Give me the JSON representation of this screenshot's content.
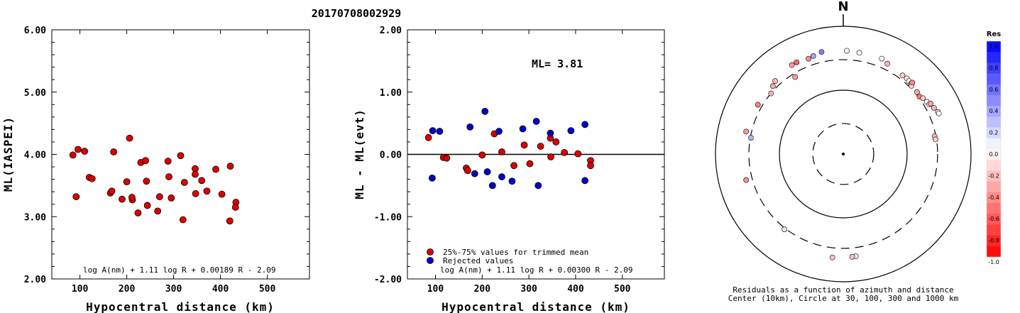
{
  "title": "20170708002929",
  "chart_data": [
    {
      "type": "scatter",
      "xlabel": "Hypocentral distance (km)",
      "ylabel": "ML(IASPEI)",
      "xlim": [
        40,
        590
      ],
      "ylim": [
        2.0,
        6.0
      ],
      "x_ticks": [
        "100",
        "200",
        "300",
        "400",
        "500"
      ],
      "y_ticks": [
        "2.00",
        "3.00",
        "4.00",
        "5.00",
        "6.00"
      ],
      "formula": "log A(nm) + 1.11 log R + 0.00189 R - 2.09",
      "series": [
        {
          "color": "#dd0000",
          "points": [
            [
              85,
              3.99
            ],
            [
              96,
              4.08
            ],
            [
              110,
              4.05
            ],
            [
              92,
              3.32
            ],
            [
              120,
              3.63
            ],
            [
              126,
              3.61
            ],
            [
              165,
              3.38
            ],
            [
              168,
              3.41
            ],
            [
              172,
              4.04
            ],
            [
              190,
              3.28
            ],
            [
              206,
              4.26
            ],
            [
              200,
              3.56
            ],
            [
              212,
              3.27
            ],
            [
              211,
              3.31
            ],
            [
              230,
              3.87
            ],
            [
              240,
              3.9
            ],
            [
              242,
              3.57
            ],
            [
              224,
              3.06
            ],
            [
              244,
              3.18
            ],
            [
              266,
              3.09
            ],
            [
              270,
              3.32
            ],
            [
              288,
              3.89
            ],
            [
              290,
              3.64
            ],
            [
              295,
              3.3
            ],
            [
              315,
              3.98
            ],
            [
              323,
              3.55
            ],
            [
              320,
              2.95
            ],
            [
              346,
              3.77
            ],
            [
              346,
              3.68
            ],
            [
              347,
              3.37
            ],
            [
              360,
              3.58
            ],
            [
              371,
              3.41
            ],
            [
              390,
              3.76
            ],
            [
              403,
              3.36
            ],
            [
              421,
              3.81
            ],
            [
              420,
              2.93
            ],
            [
              433,
              3.23
            ],
            [
              432,
              3.15
            ]
          ]
        }
      ]
    },
    {
      "type": "scatter",
      "xlabel": "Hypocentral distance (km)",
      "ylabel": "ML - ML(evt)",
      "xlim": [
        40,
        590
      ],
      "ylim": [
        -2.0,
        2.0
      ],
      "x_ticks": [
        "100",
        "200",
        "300",
        "400",
        "500"
      ],
      "y_ticks": [
        "-2.00",
        "-1.00",
        "0.00",
        "1.00",
        "2.00"
      ],
      "ml_label": "ML= 3.81",
      "legend": [
        "25%-75% values for trimmed mean",
        "Rejected values"
      ],
      "legend_location": "bottom-left",
      "formula": "log A(nm) + 1.11 log R + 0.00300 R - 2.09",
      "series": [
        {
          "name": "25%-75% values for trimmed mean",
          "color": "#dd0000",
          "points": [
            [
              85,
              0.27
            ],
            [
              117,
              -0.05
            ],
            [
              124,
              -0.06
            ],
            [
              166,
              -0.22
            ],
            [
              169,
              -0.26
            ],
            [
              200,
              -0.01
            ],
            [
              226,
              0.33
            ],
            [
              242,
              0.04
            ],
            [
              268,
              -0.18
            ],
            [
              290,
              0.15
            ],
            [
              302,
              -0.15
            ],
            [
              325,
              0.13
            ],
            [
              346,
              0.26
            ],
            [
              347,
              -0.04
            ],
            [
              358,
              0.2
            ],
            [
              376,
              0.03
            ],
            [
              405,
              0.01
            ],
            [
              432,
              -0.1
            ],
            [
              432,
              -0.18
            ]
          ]
        },
        {
          "name": "Rejected values",
          "color": "#0000cc",
          "points": [
            [
              94,
              0.38
            ],
            [
              109,
              0.37
            ],
            [
              93,
              -0.38
            ],
            [
              174,
              0.44
            ],
            [
              184,
              -0.31
            ],
            [
              206,
              0.69
            ],
            [
              211,
              -0.28
            ],
            [
              222,
              -0.5
            ],
            [
              236,
              0.37
            ],
            [
              242,
              -0.36
            ],
            [
              264,
              -0.43
            ],
            [
              287,
              0.41
            ],
            [
              316,
              0.53
            ],
            [
              320,
              -0.5
            ],
            [
              346,
              0.34
            ],
            [
              390,
              0.38
            ],
            [
              420,
              0.48
            ],
            [
              420,
              -0.42
            ]
          ]
        }
      ]
    },
    {
      "type": "scatter",
      "north_label": "N",
      "caption_line1": "Residuals as a function of azimuth and distance",
      "caption_line2": "Center (10km), Circle at 30, 100, 300 and 1000 km",
      "colorbar_title": "Res",
      "colorbar_ticks": [
        "1.0",
        "0.8",
        "0.6",
        "0.4",
        "0.2",
        "0.0",
        "-0.2",
        "-0.4",
        "-0.6",
        "-0.8",
        "-1.0"
      ],
      "rings_km": [
        30,
        100,
        300,
        1000
      ],
      "stations": [
        {
          "dist": 431,
          "az": 348,
          "res": 0.5
        },
        {
          "dist": 402,
          "az": 343,
          "res": 0.35
        },
        {
          "dist": 415,
          "az": 2,
          "res": 0.05
        },
        {
          "dist": 402,
          "az": 9,
          "res": 0.0
        },
        {
          "dist": 408,
          "az": 22,
          "res": -0.05
        },
        {
          "dist": 375,
          "az": 26,
          "res": -0.3
        },
        {
          "dist": 347,
          "az": 37,
          "res": -0.2
        },
        {
          "dist": 352,
          "az": 40,
          "res": -0.1
        },
        {
          "dist": 344,
          "az": 42,
          "res": -0.05
        },
        {
          "dist": 339,
          "az": 44,
          "res": -0.25
        },
        {
          "dist": 324,
          "az": 45,
          "res": -0.15
        },
        {
          "dist": 358,
          "az": 44,
          "res": -0.45
        },
        {
          "dist": 322,
          "az": 50,
          "res": -0.35
        },
        {
          "dist": 312,
          "az": 53,
          "res": -0.5
        },
        {
          "dist": 334,
          "az": 55,
          "res": -0.2
        },
        {
          "dist": 349,
          "az": 58,
          "res": 0.0
        },
        {
          "dist": 357,
          "az": 60,
          "res": -0.1
        },
        {
          "dist": 379,
          "az": 60,
          "res": -0.35
        },
        {
          "dist": 393,
          "az": 63,
          "res": -0.3
        },
        {
          "dist": 418,
          "az": 66,
          "res": -0.15
        },
        {
          "dist": 422,
          "az": 67,
          "res": 0.0
        },
        {
          "dist": 286,
          "az": 79,
          "res": -0.3
        },
        {
          "dist": 290,
          "az": 81,
          "res": -0.2
        },
        {
          "dist": 411,
          "az": 173,
          "res": -0.1
        },
        {
          "dist": 411,
          "az": 175,
          "res": -0.25
        },
        {
          "dist": 425,
          "az": 186,
          "res": -0.25
        },
        {
          "dist": 313,
          "az": 218,
          "res": 0.1
        },
        {
          "dist": 375,
          "az": 255,
          "res": -0.45
        },
        {
          "dist": 293,
          "az": 280,
          "res": 0.3
        },
        {
          "dist": 363,
          "az": 283,
          "res": -0.4
        },
        {
          "dist": 349,
          "az": 300,
          "res": -0.5
        },
        {
          "dist": 264,
          "az": 328,
          "res": -0.4
        },
        {
          "dist": 365,
          "az": 317,
          "res": -0.3
        },
        {
          "dist": 406,
          "az": 330,
          "res": -0.4
        },
        {
          "dist": 408,
          "az": 333,
          "res": -0.6
        },
        {
          "dist": 299,
          "az": 310,
          "res": -0.3
        },
        {
          "dist": 340,
          "az": 314,
          "res": -0.35
        },
        {
          "dist": 387,
          "az": 340,
          "res": -0.45
        }
      ]
    }
  ]
}
